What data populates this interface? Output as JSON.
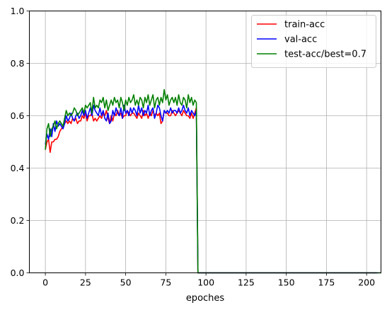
{
  "chart_data": {
    "type": "line",
    "title": "",
    "xlabel": "epoches",
    "ylabel": "",
    "xlim": [
      -9.95,
      208.95
    ],
    "ylim": [
      0,
      1
    ],
    "xticks": [
      0,
      25,
      50,
      75,
      100,
      125,
      150,
      175,
      200
    ],
    "yticks": [
      0.0,
      0.2,
      0.4,
      0.6,
      0.8,
      1.0
    ],
    "grid": true,
    "legend": {
      "placement": "top-right"
    },
    "series": [
      {
        "name": "train-acc",
        "color": "#ff0000",
        "values": [
          0.47,
          0.5,
          0.51,
          0.46,
          0.5,
          0.5,
          0.51,
          0.51,
          0.52,
          0.54,
          0.55,
          0.56,
          0.57,
          0.58,
          0.57,
          0.58,
          0.57,
          0.59,
          0.58,
          0.59,
          0.57,
          0.58,
          0.58,
          0.6,
          0.59,
          0.61,
          0.58,
          0.6,
          0.6,
          0.61,
          0.58,
          0.59,
          0.58,
          0.59,
          0.6,
          0.59,
          0.61,
          0.6,
          0.62,
          0.59,
          0.57,
          0.6,
          0.58,
          0.61,
          0.6,
          0.62,
          0.6,
          0.61,
          0.59,
          0.6,
          0.6,
          0.62,
          0.61,
          0.6,
          0.61,
          0.61,
          0.6,
          0.59,
          0.61,
          0.6,
          0.59,
          0.62,
          0.6,
          0.61,
          0.59,
          0.61,
          0.6,
          0.62,
          0.6,
          0.61,
          0.6,
          0.61,
          0.57,
          0.58,
          0.62,
          0.61,
          0.61,
          0.6,
          0.6,
          0.62,
          0.61,
          0.6,
          0.61,
          0.62,
          0.61,
          0.6,
          0.62,
          0.61,
          0.6,
          0.6,
          0.59,
          0.61,
          0.59,
          0.61,
          0.63,
          0.0,
          0.0,
          0.0,
          0.0,
          0.0,
          0.0,
          0.0,
          0.0,
          0.0,
          0.0,
          0.0,
          0.0,
          0.0,
          0.0,
          0.0,
          0.0,
          0.0,
          0.0,
          0.0,
          0.0,
          0.0,
          0.0,
          0.0,
          0.0,
          0.0,
          0.0,
          0.0,
          0.0,
          0.0,
          0.0,
          0.0,
          0.0,
          0.0,
          0.0,
          0.0,
          0.0,
          0.0,
          0.0,
          0.0,
          0.0,
          0.0,
          0.0,
          0.0,
          0.0,
          0.0,
          0.0,
          0.0,
          0.0,
          0.0,
          0.0,
          0.0,
          0.0,
          0.0,
          0.0,
          0.0,
          0.0,
          0.0,
          0.0,
          0.0,
          0.0,
          0.0,
          0.0,
          0.0,
          0.0,
          0.0,
          0.0,
          0.0,
          0.0,
          0.0,
          0.0,
          0.0,
          0.0,
          0.0,
          0.0,
          0.0,
          0.0,
          0.0,
          0.0,
          0.0,
          0.0,
          0.0,
          0.0,
          0.0,
          0.0,
          0.0,
          0.0,
          0.0,
          0.0,
          0.0,
          0.0,
          0.0,
          0.0,
          0.0,
          0.0,
          0.0,
          0.0,
          0.0,
          0.0,
          0.0,
          0.0,
          0.0,
          0.0,
          0.0,
          0.0,
          0.0,
          0.0,
          0.0,
          0.0,
          0.0,
          0.0,
          0.0,
          0.0
        ]
      },
      {
        "name": "val-acc",
        "color": "#0000ff",
        "values": [
          0.49,
          0.53,
          0.51,
          0.55,
          0.52,
          0.57,
          0.54,
          0.58,
          0.56,
          0.57,
          0.56,
          0.55,
          0.57,
          0.6,
          0.58,
          0.59,
          0.61,
          0.59,
          0.58,
          0.6,
          0.61,
          0.59,
          0.6,
          0.62,
          0.6,
          0.62,
          0.59,
          0.61,
          0.63,
          0.6,
          0.64,
          0.62,
          0.61,
          0.6,
          0.63,
          0.6,
          0.62,
          0.59,
          0.58,
          0.61,
          0.57,
          0.58,
          0.62,
          0.6,
          0.63,
          0.61,
          0.6,
          0.63,
          0.59,
          0.64,
          0.61,
          0.62,
          0.6,
          0.63,
          0.61,
          0.63,
          0.62,
          0.6,
          0.64,
          0.61,
          0.63,
          0.6,
          0.62,
          0.61,
          0.64,
          0.6,
          0.62,
          0.63,
          0.59,
          0.61,
          0.64,
          0.63,
          0.6,
          0.58,
          0.62,
          0.61,
          0.62,
          0.61,
          0.63,
          0.61,
          0.62,
          0.62,
          0.61,
          0.63,
          0.61,
          0.62,
          0.64,
          0.62,
          0.61,
          0.63,
          0.6,
          0.62,
          0.61,
          0.6,
          0.62,
          0.0,
          0.0,
          0.0,
          0.0,
          0.0,
          0.0,
          0.0,
          0.0,
          0.0,
          0.0,
          0.0,
          0.0,
          0.0,
          0.0,
          0.0,
          0.0,
          0.0,
          0.0,
          0.0,
          0.0,
          0.0,
          0.0,
          0.0,
          0.0,
          0.0,
          0.0,
          0.0,
          0.0,
          0.0,
          0.0,
          0.0,
          0.0,
          0.0,
          0.0,
          0.0,
          0.0,
          0.0,
          0.0,
          0.0,
          0.0,
          0.0,
          0.0,
          0.0,
          0.0,
          0.0,
          0.0,
          0.0,
          0.0,
          0.0,
          0.0,
          0.0,
          0.0,
          0.0,
          0.0,
          0.0,
          0.0,
          0.0,
          0.0,
          0.0,
          0.0,
          0.0,
          0.0,
          0.0,
          0.0,
          0.0,
          0.0,
          0.0,
          0.0,
          0.0,
          0.0,
          0.0,
          0.0,
          0.0,
          0.0,
          0.0,
          0.0,
          0.0,
          0.0,
          0.0,
          0.0,
          0.0,
          0.0,
          0.0,
          0.0,
          0.0,
          0.0,
          0.0,
          0.0,
          0.0,
          0.0,
          0.0,
          0.0,
          0.0,
          0.0,
          0.0,
          0.0,
          0.0,
          0.0,
          0.0,
          0.0,
          0.0,
          0.0,
          0.0,
          0.0,
          0.0,
          0.0,
          0.0,
          0.0,
          0.0,
          0.0,
          0.0,
          0.0,
          0.0
        ]
      },
      {
        "name": "test-acc/best=0.7",
        "color": "#008000",
        "values": [
          0.47,
          0.55,
          0.57,
          0.52,
          0.55,
          0.56,
          0.58,
          0.55,
          0.57,
          0.58,
          0.57,
          0.56,
          0.59,
          0.62,
          0.6,
          0.61,
          0.6,
          0.61,
          0.63,
          0.62,
          0.6,
          0.61,
          0.62,
          0.63,
          0.61,
          0.64,
          0.63,
          0.64,
          0.65,
          0.61,
          0.67,
          0.63,
          0.64,
          0.63,
          0.66,
          0.65,
          0.67,
          0.63,
          0.66,
          0.62,
          0.64,
          0.66,
          0.64,
          0.67,
          0.65,
          0.66,
          0.63,
          0.67,
          0.65,
          0.62,
          0.66,
          0.64,
          0.67,
          0.65,
          0.66,
          0.68,
          0.64,
          0.66,
          0.64,
          0.67,
          0.66,
          0.63,
          0.67,
          0.65,
          0.68,
          0.64,
          0.66,
          0.68,
          0.63,
          0.66,
          0.67,
          0.64,
          0.67,
          0.65,
          0.7,
          0.66,
          0.68,
          0.64,
          0.66,
          0.67,
          0.65,
          0.67,
          0.64,
          0.68,
          0.65,
          0.64,
          0.67,
          0.66,
          0.63,
          0.68,
          0.65,
          0.67,
          0.64,
          0.66,
          0.65,
          0.0,
          0.0,
          0.0,
          0.0,
          0.0,
          0.0,
          0.0,
          0.0,
          0.0,
          0.0,
          0.0,
          0.0,
          0.0,
          0.0,
          0.0,
          0.0,
          0.0,
          0.0,
          0.0,
          0.0,
          0.0,
          0.0,
          0.0,
          0.0,
          0.0,
          0.0,
          0.0,
          0.0,
          0.0,
          0.0,
          0.0,
          0.0,
          0.0,
          0.0,
          0.0,
          0.0,
          0.0,
          0.0,
          0.0,
          0.0,
          0.0,
          0.0,
          0.0,
          0.0,
          0.0,
          0.0,
          0.0,
          0.0,
          0.0,
          0.0,
          0.0,
          0.0,
          0.0,
          0.0,
          0.0,
          0.0,
          0.0,
          0.0,
          0.0,
          0.0,
          0.0,
          0.0,
          0.0,
          0.0,
          0.0,
          0.0,
          0.0,
          0.0,
          0.0,
          0.0,
          0.0,
          0.0,
          0.0,
          0.0,
          0.0,
          0.0,
          0.0,
          0.0,
          0.0,
          0.0,
          0.0,
          0.0,
          0.0,
          0.0,
          0.0,
          0.0,
          0.0,
          0.0,
          0.0,
          0.0,
          0.0,
          0.0,
          0.0,
          0.0,
          0.0,
          0.0,
          0.0,
          0.0,
          0.0,
          0.0,
          0.0,
          0.0,
          0.0,
          0.0,
          0.0,
          0.0,
          0.0,
          0.0,
          0.0,
          0.0,
          0.0,
          0.0,
          0.0,
          0.0,
          0.0
        ]
      }
    ]
  }
}
